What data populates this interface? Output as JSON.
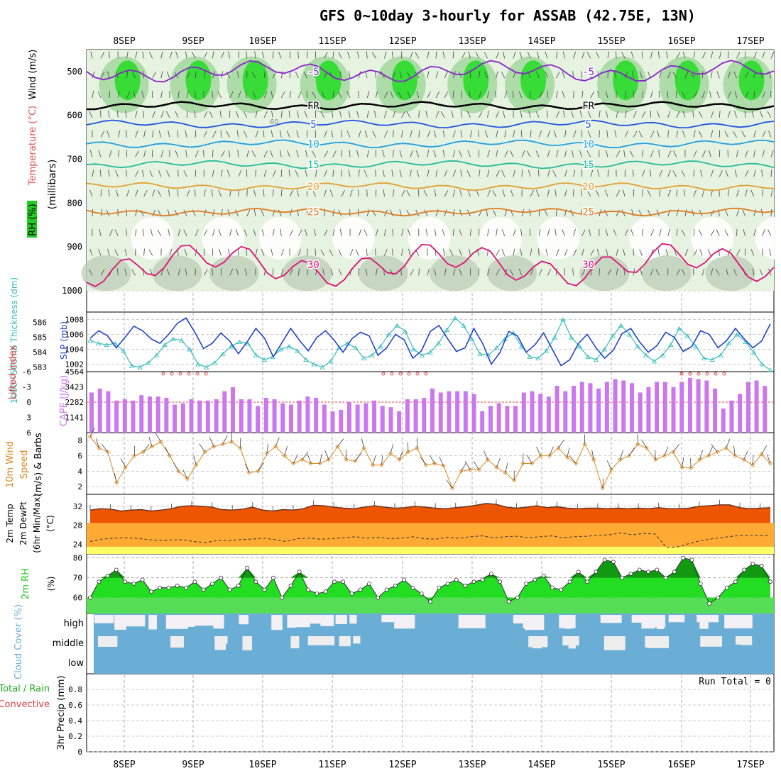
{
  "title": "GFS 0~10day 3-hourly for ASSAB (42.75E, 13N)",
  "date_labels": [
    "8SEP",
    "9SEP",
    "10SEP",
    "11SEP",
    "12SEP",
    "13SEP",
    "14SEP",
    "15SEP",
    "16SEP",
    "17SEP"
  ],
  "colors": {
    "rh": "#22cc22",
    "temperature": "#e05050",
    "wind": "#555555",
    "thickness": "#33bbbb",
    "slp": "#2244cc",
    "cape": "#cc77ee",
    "lifted": "#e04040",
    "wind10m": "#dd8822",
    "temp2m": "#ee5500",
    "dewpt": "#ffaa33",
    "rh2m": "#22cc22",
    "cloud": "#6aaed6",
    "precip_total": "#22aa22",
    "precip_conv": "#e04040"
  },
  "chart_data": [
    {
      "type": "heatmap",
      "panel": "upper-air",
      "ylabel": "(millibars)",
      "side_labels": {
        "rh": "RH (%)",
        "temperature": "Temperature (°C)",
        "wind": "Wind (m/s)"
      },
      "yticks": [
        500,
        600,
        700,
        800,
        900,
        1000
      ],
      "ylim": [
        450,
        1000
      ],
      "isotherm_labels": [
        "-5",
        "FR",
        "5",
        "10",
        "15",
        "20",
        "25",
        "30"
      ],
      "rh_contour_labels": [
        "30",
        "60"
      ],
      "isotherms": [
        {
          "label": "-5",
          "level": 500
        },
        {
          "label": "FR",
          "level": 578
        },
        {
          "label": "5",
          "level": 620
        },
        {
          "label": "10",
          "level": 665
        },
        {
          "label": "15",
          "level": 712
        },
        {
          "label": "20",
          "level": 762
        },
        {
          "label": "25",
          "level": 820
        },
        {
          "label": "30",
          "level": 940
        }
      ]
    },
    {
      "type": "line",
      "panel": "slp-thickness",
      "labels": {
        "thickness": "1000~500mb Thickness (dm)",
        "slp": "SLP (mb)"
      },
      "yticks_thickness": [
        583,
        584,
        585,
        586
      ],
      "yticks_slp": [
        1002,
        1004,
        1006,
        1008
      ],
      "ylim_slp": [
        1001,
        1009
      ],
      "ylim_thickness": [
        582.7,
        586.7
      ],
      "slp": [
        1005.5,
        1006.5,
        1005.8,
        1004.2,
        1005.6,
        1007.1,
        1006.5,
        1005.4,
        1004.8,
        1006.0,
        1007.5,
        1008.2,
        1006.3,
        1004.1,
        1004.8,
        1006.2,
        1005.1,
        1003.4,
        1005.0,
        1006.8,
        1005.5,
        1003.0,
        1004.9,
        1006.8,
        1005.2,
        1003.8,
        1005.6,
        1006.5,
        1005.2,
        1003.6,
        1005.4,
        1006.3,
        1005.8,
        1003.2,
        1004.2,
        1006.0,
        1005.3,
        1002.8,
        1003.8,
        1006.4,
        1007.2,
        1005.4,
        1003.7,
        1004.2,
        1006.8,
        1004.8,
        1002.0,
        1003.6,
        1006.4,
        1005.8,
        1003.6,
        1004.6,
        1006.2,
        1004.0,
        1001.8,
        1002.6,
        1004.8,
        1006.0,
        1004.2,
        1002.8,
        1003.9,
        1006.1,
        1006.8,
        1005.0,
        1003.6,
        1004.5,
        1006.3,
        1005.6,
        1003.7,
        1004.4,
        1006.5,
        1006.0,
        1004.2,
        1005.2,
        1006.8,
        1005.4,
        1004.2,
        1005.1,
        1007.4
      ],
      "thickness": [
        584.8,
        584.6,
        584.5,
        584.6,
        584.1,
        583.1,
        583.0,
        583.3,
        583.8,
        584.5,
        584.9,
        584.8,
        584.2,
        583.2,
        583.0,
        583.3,
        583.9,
        584.4,
        584.7,
        584.6,
        583.8,
        583.5,
        583.7,
        584.2,
        584.4,
        584.1,
        583.5,
        583.2,
        583.0,
        583.4,
        584.3,
        584.6,
        584.3,
        583.6,
        583.8,
        584.4,
        585.2,
        585.8,
        585.4,
        584.2,
        583.8,
        584.0,
        584.6,
        585.5,
        586.3,
        585.8,
        584.9,
        583.9,
        583.8,
        584.3,
        584.9,
        585.3,
        584.4,
        583.7,
        583.6,
        584.1,
        585.0,
        586.2,
        585.0,
        584.4,
        583.7,
        583.5,
        584.2,
        585.1,
        585.8,
        585.2,
        584.4,
        583.8,
        583.4,
        583.8,
        584.5,
        585.6,
        585.1,
        584.4,
        583.6,
        583.5,
        583.8,
        584.6,
        585.2,
        584.7,
        584.0,
        583.2,
        582.8
      ]
    },
    {
      "type": "bar",
      "panel": "cape-lifted",
      "labels": {
        "lifted": "Lifted Index",
        "cape": "CAPE (J/kg)"
      },
      "yticks_cape": [
        1141,
        2282,
        3423,
        4564
      ],
      "yticks_li": [
        "-6",
        "-3",
        "0",
        "3",
        "6"
      ],
      "ylim": [
        0,
        4564
      ],
      "cape": [
        3000,
        3300,
        3100,
        2400,
        2500,
        2400,
        2800,
        2700,
        2700,
        2600,
        2100,
        2200,
        2500,
        2400,
        2400,
        2500,
        3100,
        3400,
        2500,
        2500,
        2000,
        2600,
        2500,
        2200,
        2100,
        2400,
        2700,
        2600,
        2100,
        1600,
        1700,
        2300,
        2100,
        2200,
        2400,
        2000,
        1900,
        1600,
        2500,
        2500,
        2600,
        3300,
        3000,
        3100,
        3100,
        3100,
        2900,
        1600,
        2000,
        2200,
        2000,
        2000,
        3000,
        3100,
        2900,
        2700,
        3500,
        3100,
        3500,
        3800,
        3700,
        3300,
        3800,
        4000,
        3900,
        3700,
        3000,
        3400,
        3800,
        3800,
        3400,
        3800,
        4100,
        4000,
        3900,
        3300,
        1800,
        2400,
        2900,
        3800,
        3900,
        3500
      ],
      "lifted_index_visible": [
        -6.5,
        -6.5,
        -6.3,
        -6.6,
        -6.8,
        -6.4,
        -6.7,
        -6.3,
        -6.4,
        -6.5,
        -6.2,
        -6.3,
        -5.8,
        -5.9,
        -6.2,
        -5.4,
        -5.3,
        -5.7,
        -6.0,
        -6.3
      ]
    },
    {
      "type": "line",
      "panel": "wind-10m",
      "labels": {
        "main": "10m Wind Speed (m/s) & Barbs"
      },
      "label_lines": [
        "10m Wind",
        "Speed",
        "(m/s) & Barbs"
      ],
      "yticks": [
        2,
        4,
        6,
        8
      ],
      "ylim": [
        1,
        9
      ],
      "speed": [
        8.5,
        7.0,
        6.5,
        2.5,
        4.5,
        6.0,
        6.5,
        7.2,
        7.8,
        6.0,
        4.0,
        3.0,
        4.8,
        6.5,
        7.2,
        7.5,
        7.8,
        7.0,
        3.8,
        4.0,
        6.3,
        7.2,
        6.0,
        5.0,
        5.5,
        5.0,
        5.0,
        5.5,
        7.2,
        5.5,
        5.3,
        7.0,
        4.8,
        4.8,
        6.3,
        5.5,
        6.5,
        7.0,
        4.8,
        5.0,
        4.7,
        1.8,
        4.0,
        4.2,
        4.2,
        5.5,
        4.5,
        3.8,
        2.8,
        5.0,
        5.0,
        6.0,
        6.0,
        7.0,
        5.8,
        5.0,
        7.5,
        5.5,
        1.8,
        4.2,
        5.5,
        6.0,
        7.5,
        7.0,
        5.5,
        6.0,
        6.5,
        4.5,
        4.4,
        5.5,
        6.0,
        6.5,
        7.0,
        6.0,
        5.5,
        4.8,
        6.2,
        5.0
      ]
    },
    {
      "type": "area",
      "panel": "temp-2m",
      "labels": {
        "main": "2m Temp 2m DewPt (6hr Min/Max) (°C)"
      },
      "label_lines": [
        "2m Temp",
        "2m DewPt",
        "(6hr Min/Max)",
        "(°C)"
      ],
      "yticks": [
        24,
        28,
        32
      ],
      "ylim": [
        22,
        34.5
      ],
      "temp": [
        31.2,
        31.5,
        31.4,
        31.0,
        31.2,
        31.3,
        31.0,
        31.2,
        31.5,
        32.0,
        32.1,
        32.0,
        31.8,
        31.3,
        31.2,
        31.4,
        31.8,
        31.2,
        31.0,
        31.3,
        31.2,
        31.5,
        32.2,
        32.1,
        31.8,
        31.6,
        31.5,
        31.8,
        32.1,
        31.8,
        31.6,
        31.7,
        32.0,
        31.8,
        31.6,
        31.5,
        31.7,
        31.9,
        32.2,
        32.6,
        32.4,
        31.8,
        31.6,
        31.8,
        32.1,
        31.7,
        31.9,
        31.6,
        31.5,
        31.6,
        31.6,
        31.5,
        31.6,
        31.5,
        31.6,
        31.5,
        31.7,
        31.5,
        31.5,
        31.6,
        32.0,
        32.1,
        32.3,
        32.3,
        31.7,
        31.5,
        31.6,
        31.7
      ],
      "dewpt": [
        24.6,
        25.1,
        25.3,
        25.4,
        25.3,
        25.0,
        24.8,
        24.9,
        25.0,
        24.6,
        24.4,
        24.8,
        24.8,
        25.0,
        25.1,
        25.3,
        25.0,
        24.6,
        25.2,
        25.3,
        25.1,
        25.2,
        25.4,
        25.6,
        25.3,
        25.5,
        25.2,
        25.3,
        25.6,
        25.2,
        25.1,
        25.5,
        25.3,
        25.6,
        25.8,
        25.4,
        25.6,
        25.7,
        25.4,
        25.6,
        25.8,
        25.4,
        25.6,
        25.7,
        25.9,
        26.0,
        26.4,
        26.0,
        26.3,
        26.2,
        23.3,
        23.5,
        24.2,
        24.8,
        25.2,
        25.5,
        25.8,
        25.9,
        25.9,
        25.8
      ]
    },
    {
      "type": "area",
      "panel": "rh-2m",
      "labels": {
        "main": "2m RH (%)"
      },
      "yticks": [
        60,
        70,
        80
      ],
      "ylim": [
        52,
        82
      ],
      "rh": [
        60,
        68,
        71,
        74,
        68,
        67,
        69,
        63,
        65,
        65,
        66,
        65,
        68,
        64,
        67,
        70,
        64,
        66,
        75,
        68,
        64,
        70,
        60,
        66,
        73,
        64,
        62,
        63,
        68,
        68,
        62,
        64,
        67,
        60,
        64,
        66,
        69,
        65,
        62,
        58,
        65,
        67,
        69,
        66,
        68,
        69,
        72,
        68,
        58,
        60,
        67,
        69,
        71,
        65,
        64,
        68,
        73,
        68,
        73,
        79,
        78,
        70,
        72,
        74,
        73,
        74,
        70,
        73,
        80,
        79,
        67,
        57,
        60,
        65,
        68,
        74,
        77,
        76,
        68
      ]
    },
    {
      "type": "bar",
      "panel": "cloud-cover",
      "labels": {
        "main": "Cloud Cover (%)"
      },
      "levels": [
        "high",
        "middle",
        "low"
      ]
    },
    {
      "type": "bar",
      "panel": "precip",
      "labels": {
        "total": "Total / Rain",
        "convective": "Convective",
        "main": "3hr Precip (mm)"
      },
      "yticks": [
        "0",
        "0.2",
        "0.4",
        "0.6",
        "0.8"
      ],
      "ylim": [
        0,
        1
      ],
      "run_total": "Run Total = 0",
      "values": []
    }
  ]
}
